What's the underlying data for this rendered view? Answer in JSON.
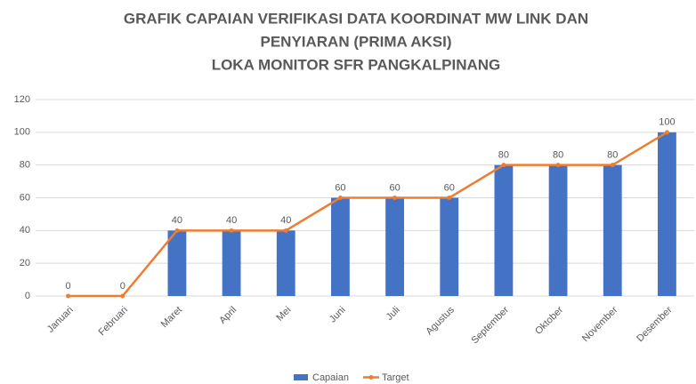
{
  "chart_data": {
    "type": "bar",
    "title": [
      "GRAFIK CAPAIAN VERIFIKASI DATA KOORDINAT MW LINK DAN",
      "PENYIARAN (PRIMA AKSI)"
    ],
    "subtitle": "LOKA MONITOR SFR PANGKALPINANG",
    "categories": [
      "Januari",
      "Februari",
      "Maret",
      "April",
      "Mei",
      "Juni",
      "Juli",
      "Agustus",
      "September",
      "Oktober",
      "November",
      "Desember"
    ],
    "series": [
      {
        "name": "Capaian",
        "type": "bar",
        "color": "#4472c4",
        "values": [
          0,
          0,
          40,
          40,
          40,
          60,
          60,
          60,
          80,
          80,
          80,
          100
        ]
      },
      {
        "name": "Target",
        "type": "line",
        "color": "#ed7d31",
        "values": [
          0,
          0,
          40,
          40,
          40,
          60,
          60,
          60,
          80,
          80,
          80,
          100
        ]
      }
    ],
    "ylim": [
      0,
      120
    ],
    "yticks": [
      0,
      20,
      40,
      60,
      80,
      100,
      120
    ],
    "grid": true,
    "legend": "bottom"
  }
}
